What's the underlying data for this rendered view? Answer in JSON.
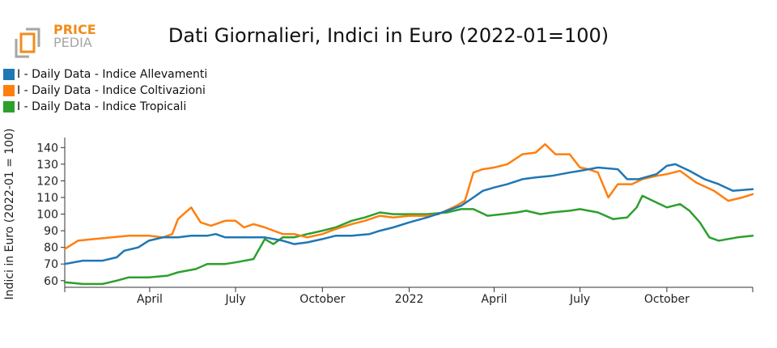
{
  "header": {
    "title": "Dati Giornalieri, Indici in Euro (2022-01=100)",
    "logo_line1": "PRICE",
    "logo_line2": "PEDIA"
  },
  "colors": {
    "allevamenti": "#1f77b4",
    "coltivazioni": "#ff7f0e",
    "tropicali": "#2ca02c",
    "logo_orange": "#f28c1a",
    "logo_gray": "#a6a6a6"
  },
  "chart_data": {
    "type": "line",
    "title": "Dati Giornalieri, Indici in Euro (2022-01=100)",
    "ylabel": "Indici in Euro (2022-01 = 100)",
    "xlabel": "",
    "ylim": [
      56,
      146
    ],
    "yticks": [
      60,
      70,
      80,
      90,
      100,
      110,
      120,
      130,
      140
    ],
    "x_range": [
      "2021-01-01",
      "2022-12-31"
    ],
    "xticks": [
      {
        "date": "2021-04-01",
        "label": "April"
      },
      {
        "date": "2021-07-01",
        "label": "July"
      },
      {
        "date": "2021-10-01",
        "label": "October"
      },
      {
        "date": "2022-01-01",
        "label": "2022"
      },
      {
        "date": "2022-04-01",
        "label": "April"
      },
      {
        "date": "2022-07-01",
        "label": "July"
      },
      {
        "date": "2022-10-01",
        "label": "October"
      }
    ],
    "legend_position": "top-left",
    "grid": false,
    "series": [
      {
        "name": "I - Daily Data - Indice Allevamenti",
        "color": "#1f77b4",
        "points": [
          [
            "2021-01-01",
            70
          ],
          [
            "2021-01-20",
            72
          ],
          [
            "2021-02-10",
            72
          ],
          [
            "2021-02-25",
            74
          ],
          [
            "2021-03-05",
            78
          ],
          [
            "2021-03-20",
            80
          ],
          [
            "2021-03-31",
            84
          ],
          [
            "2021-04-15",
            86
          ],
          [
            "2021-05-01",
            86
          ],
          [
            "2021-05-15",
            87
          ],
          [
            "2021-06-01",
            87
          ],
          [
            "2021-06-10",
            88
          ],
          [
            "2021-06-20",
            86
          ],
          [
            "2021-07-01",
            86
          ],
          [
            "2021-07-20",
            86
          ],
          [
            "2021-08-01",
            86
          ],
          [
            "2021-08-20",
            84
          ],
          [
            "2021-09-01",
            82
          ],
          [
            "2021-09-15",
            83
          ],
          [
            "2021-10-01",
            85
          ],
          [
            "2021-10-15",
            87
          ],
          [
            "2021-11-01",
            87
          ],
          [
            "2021-11-20",
            88
          ],
          [
            "2021-12-01",
            90
          ],
          [
            "2021-12-15",
            92
          ],
          [
            "2022-01-01",
            95
          ],
          [
            "2022-01-20",
            98
          ],
          [
            "2022-02-10",
            102
          ],
          [
            "2022-02-25",
            105
          ],
          [
            "2022-03-10",
            110
          ],
          [
            "2022-03-20",
            114
          ],
          [
            "2022-04-01",
            116
          ],
          [
            "2022-04-15",
            118
          ],
          [
            "2022-05-01",
            121
          ],
          [
            "2022-05-15",
            122
          ],
          [
            "2022-06-01",
            123
          ],
          [
            "2022-06-20",
            125
          ],
          [
            "2022-07-01",
            126
          ],
          [
            "2022-07-20",
            128
          ],
          [
            "2022-08-10",
            127
          ],
          [
            "2022-08-20",
            121
          ],
          [
            "2022-09-01",
            121
          ],
          [
            "2022-09-20",
            124
          ],
          [
            "2022-10-01",
            129
          ],
          [
            "2022-10-10",
            130
          ],
          [
            "2022-10-25",
            126
          ],
          [
            "2022-11-10",
            121
          ],
          [
            "2022-11-25",
            118
          ],
          [
            "2022-12-10",
            114
          ],
          [
            "2022-12-31",
            115
          ]
        ]
      },
      {
        "name": "I - Daily Data - Indice Coltivazioni",
        "color": "#ff7f0e",
        "points": [
          [
            "2021-01-01",
            79
          ],
          [
            "2021-01-15",
            84
          ],
          [
            "2021-02-01",
            85
          ],
          [
            "2021-02-20",
            86
          ],
          [
            "2021-03-10",
            87
          ],
          [
            "2021-03-31",
            87
          ],
          [
            "2021-04-15",
            86
          ],
          [
            "2021-04-25",
            88
          ],
          [
            "2021-05-01",
            97
          ],
          [
            "2021-05-15",
            104
          ],
          [
            "2021-05-25",
            95
          ],
          [
            "2021-06-05",
            93
          ],
          [
            "2021-06-20",
            96
          ],
          [
            "2021-07-01",
            96
          ],
          [
            "2021-07-10",
            92
          ],
          [
            "2021-07-20",
            94
          ],
          [
            "2021-08-01",
            92
          ],
          [
            "2021-08-20",
            88
          ],
          [
            "2021-09-01",
            88
          ],
          [
            "2021-09-15",
            86
          ],
          [
            "2021-10-01",
            88
          ],
          [
            "2021-10-15",
            91
          ],
          [
            "2021-11-01",
            94
          ],
          [
            "2021-11-15",
            96
          ],
          [
            "2021-12-01",
            99
          ],
          [
            "2021-12-15",
            98
          ],
          [
            "2022-01-01",
            99
          ],
          [
            "2022-01-20",
            99
          ],
          [
            "2022-02-01",
            100
          ],
          [
            "2022-02-20",
            105
          ],
          [
            "2022-03-01",
            108
          ],
          [
            "2022-03-10",
            125
          ],
          [
            "2022-03-20",
            127
          ],
          [
            "2022-04-01",
            128
          ],
          [
            "2022-04-15",
            130
          ],
          [
            "2022-05-01",
            136
          ],
          [
            "2022-05-15",
            137
          ],
          [
            "2022-05-25",
            142
          ],
          [
            "2022-06-05",
            136
          ],
          [
            "2022-06-20",
            136
          ],
          [
            "2022-07-01",
            128
          ],
          [
            "2022-07-10",
            127
          ],
          [
            "2022-07-20",
            125
          ],
          [
            "2022-07-31",
            110
          ],
          [
            "2022-08-10",
            118
          ],
          [
            "2022-08-25",
            118
          ],
          [
            "2022-09-05",
            121
          ],
          [
            "2022-09-20",
            123
          ],
          [
            "2022-10-01",
            124
          ],
          [
            "2022-10-15",
            126
          ],
          [
            "2022-11-01",
            119
          ],
          [
            "2022-11-20",
            114
          ],
          [
            "2022-12-05",
            108
          ],
          [
            "2022-12-20",
            110
          ],
          [
            "2022-12-31",
            112
          ]
        ]
      },
      {
        "name": "I - Daily Data - Indice Tropicali",
        "color": "#2ca02c",
        "points": [
          [
            "2021-01-01",
            59
          ],
          [
            "2021-01-20",
            58
          ],
          [
            "2021-02-10",
            58
          ],
          [
            "2021-02-25",
            60
          ],
          [
            "2021-03-10",
            62
          ],
          [
            "2021-03-31",
            62
          ],
          [
            "2021-04-20",
            63
          ],
          [
            "2021-05-01",
            65
          ],
          [
            "2021-05-20",
            67
          ],
          [
            "2021-06-01",
            70
          ],
          [
            "2021-06-20",
            70
          ],
          [
            "2021-07-01",
            71
          ],
          [
            "2021-07-20",
            73
          ],
          [
            "2021-08-01",
            85
          ],
          [
            "2021-08-10",
            82
          ],
          [
            "2021-08-20",
            86
          ],
          [
            "2021-09-01",
            86
          ],
          [
            "2021-09-15",
            88
          ],
          [
            "2021-10-01",
            90
          ],
          [
            "2021-10-15",
            92
          ],
          [
            "2021-11-01",
            96
          ],
          [
            "2021-11-15",
            98
          ],
          [
            "2021-12-01",
            101
          ],
          [
            "2021-12-15",
            100
          ],
          [
            "2022-01-01",
            100
          ],
          [
            "2022-01-20",
            100
          ],
          [
            "2022-02-10",
            101
          ],
          [
            "2022-02-25",
            103
          ],
          [
            "2022-03-10",
            103
          ],
          [
            "2022-03-25",
            99
          ],
          [
            "2022-04-10",
            100
          ],
          [
            "2022-04-25",
            101
          ],
          [
            "2022-05-05",
            102
          ],
          [
            "2022-05-20",
            100
          ],
          [
            "2022-06-01",
            101
          ],
          [
            "2022-06-20",
            102
          ],
          [
            "2022-07-01",
            103
          ],
          [
            "2022-07-20",
            101
          ],
          [
            "2022-08-05",
            97
          ],
          [
            "2022-08-20",
            98
          ],
          [
            "2022-08-30",
            104
          ],
          [
            "2022-09-05",
            111
          ],
          [
            "2022-09-20",
            107
          ],
          [
            "2022-10-01",
            104
          ],
          [
            "2022-10-15",
            106
          ],
          [
            "2022-10-25",
            102
          ],
          [
            "2022-11-05",
            95
          ],
          [
            "2022-11-15",
            86
          ],
          [
            "2022-11-25",
            84
          ],
          [
            "2022-12-15",
            86
          ],
          [
            "2022-12-31",
            87
          ]
        ]
      }
    ]
  }
}
